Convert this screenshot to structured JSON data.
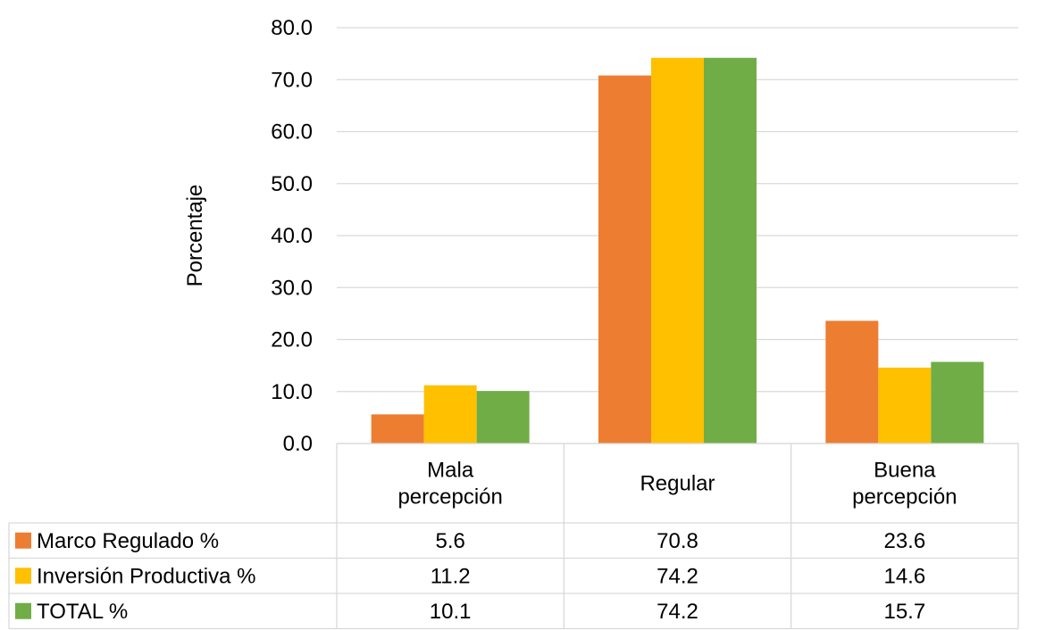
{
  "chart_data": {
    "type": "bar",
    "title": "",
    "xlabel": "",
    "ylabel": "Porcentaje",
    "ylim": [
      0,
      80
    ],
    "y_ticks": [
      "0.0",
      "10.0",
      "20.0",
      "30.0",
      "40.0",
      "50.0",
      "60.0",
      "70.0",
      "80.0"
    ],
    "grid": true,
    "legend": "data-table",
    "categories": [
      [
        "Mala",
        "percepción"
      ],
      [
        "Regular"
      ],
      [
        "Buena",
        "percepción"
      ]
    ],
    "series": [
      {
        "name": "Marco Regulado %",
        "color": "#ED7D31",
        "values": [
          5.6,
          70.8,
          23.6
        ],
        "labels": [
          "5.6",
          "70.8",
          "23.6"
        ]
      },
      {
        "name": "Inversión Productiva %",
        "color": "#FFC000",
        "values": [
          11.2,
          74.2,
          14.6
        ],
        "labels": [
          "11.2",
          "74.2",
          "14.6"
        ]
      },
      {
        "name": "TOTAL %",
        "color": "#70AD47",
        "values": [
          10.1,
          74.2,
          15.7
        ],
        "labels": [
          "10.1",
          "74.2",
          "15.7"
        ]
      }
    ]
  }
}
